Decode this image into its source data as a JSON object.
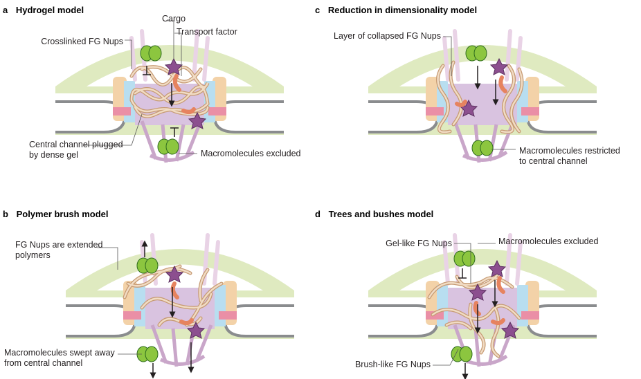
{
  "panels": [
    {
      "letter": "a",
      "title": "Hydrogel model",
      "labels": [
        "Cargo",
        "Transport factor",
        "Crosslinked FG Nups",
        "Central channel plugged",
        "by dense gel",
        "Macromolecules excluded"
      ]
    },
    {
      "letter": "c",
      "title": "Reduction in dimensionality model",
      "labels": [
        "Layer of collapsed FG Nups",
        "Macromolecules restricted",
        "to central channel"
      ]
    },
    {
      "letter": "b",
      "title": "Polymer brush model",
      "labels": [
        "FG Nups are extended",
        "polymers",
        "Macromolecules swept away",
        "from central channel"
      ]
    },
    {
      "letter": "d",
      "title": "Trees and bushes model",
      "labels": [
        "Gel-like FG Nups",
        "Macromolecules excluded",
        "Brush-like FG Nups"
      ]
    }
  ],
  "colors": {
    "envelope": "#dfeac0",
    "envelope_light": "#eef3d9",
    "ring_pink": "#ea8fa6",
    "ring_blue": "#b8def0",
    "ring_purple": "#cdb2d6",
    "ring_peach": "#f3d2a8",
    "fg_nup": "#e7c3a1",
    "cargo_green": "#8cc63f",
    "transport_purple": "#8c4f8f",
    "adaptor_orange": "#e6835f"
  }
}
